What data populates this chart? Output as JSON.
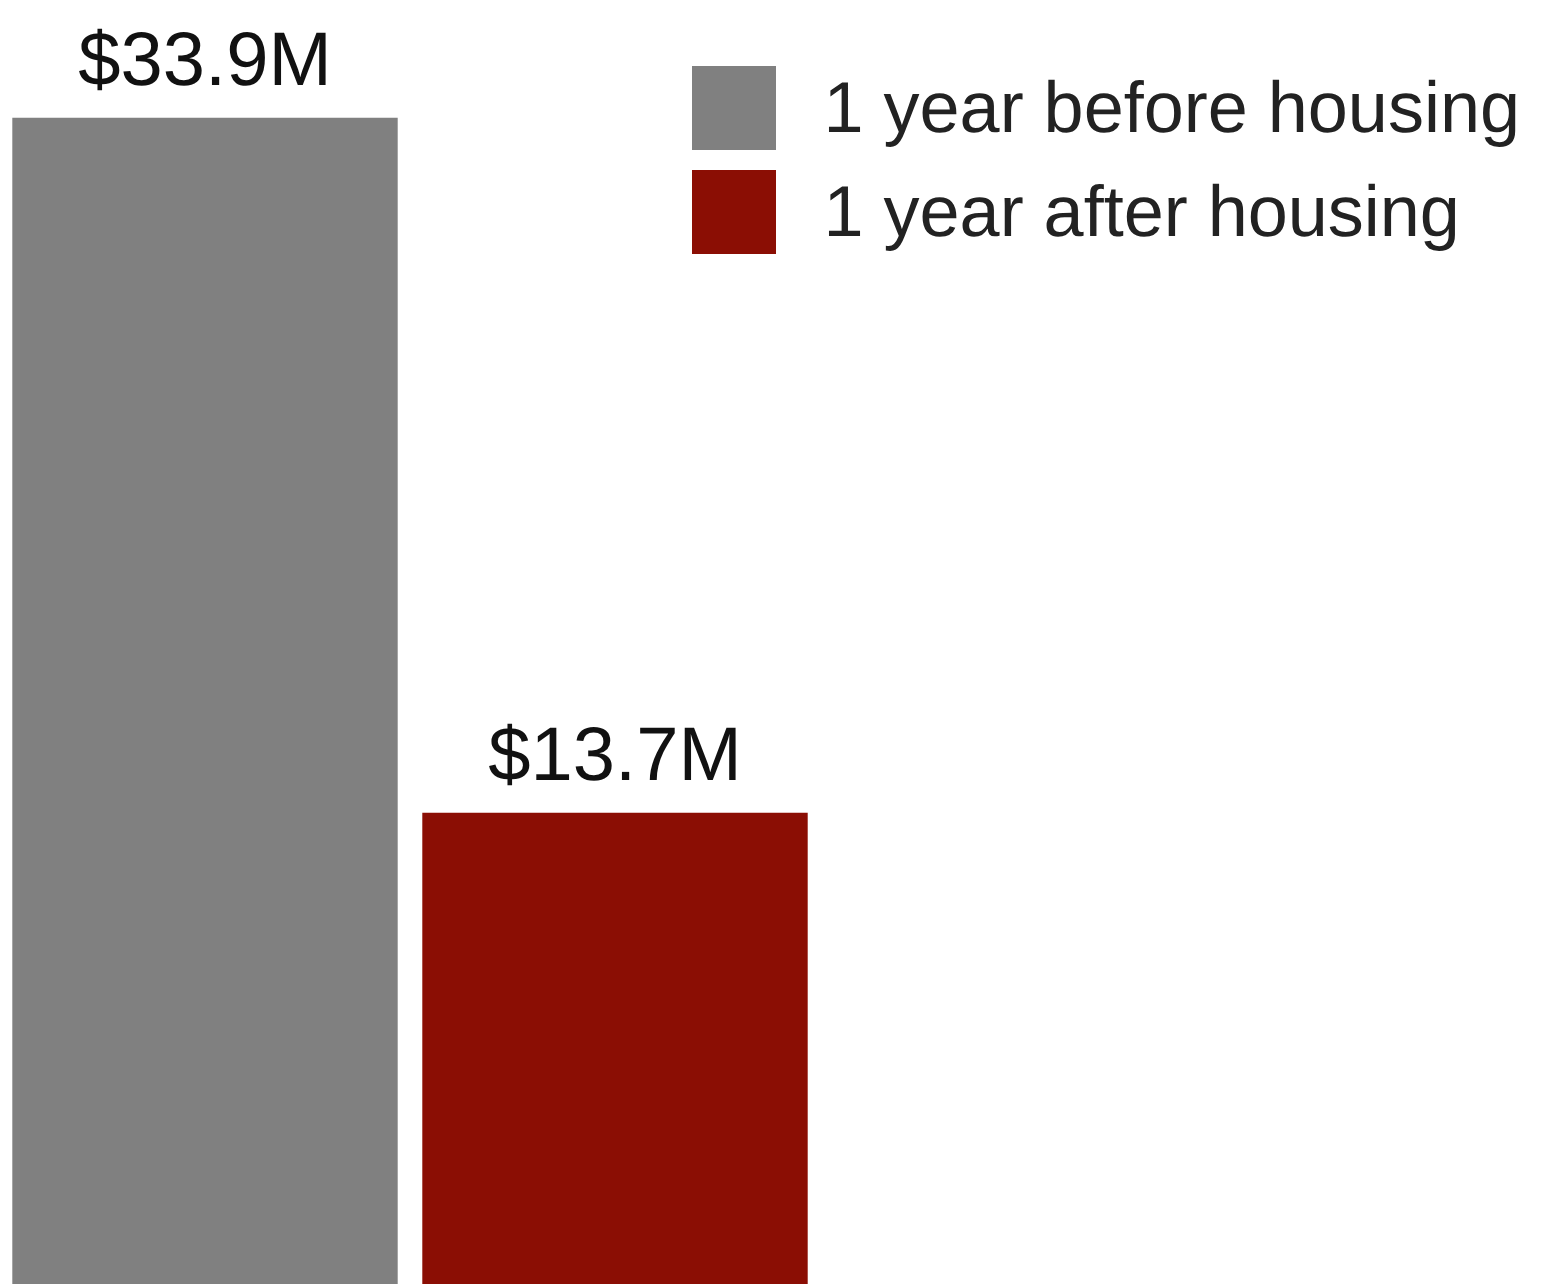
{
  "chart_data": {
    "type": "bar",
    "categories": [
      null
    ],
    "series": [
      {
        "name": "1 year before housing",
        "color": "#808080",
        "values": [
          33.9
        ],
        "value_labels": [
          "$33.9M"
        ]
      },
      {
        "name": "1 year after housing",
        "color": "#8b0e04",
        "values": [
          13.7
        ],
        "value_labels": [
          "$13.7M"
        ]
      }
    ],
    "legend": "top right",
    "grid": false,
    "tick_labels": false
  }
}
